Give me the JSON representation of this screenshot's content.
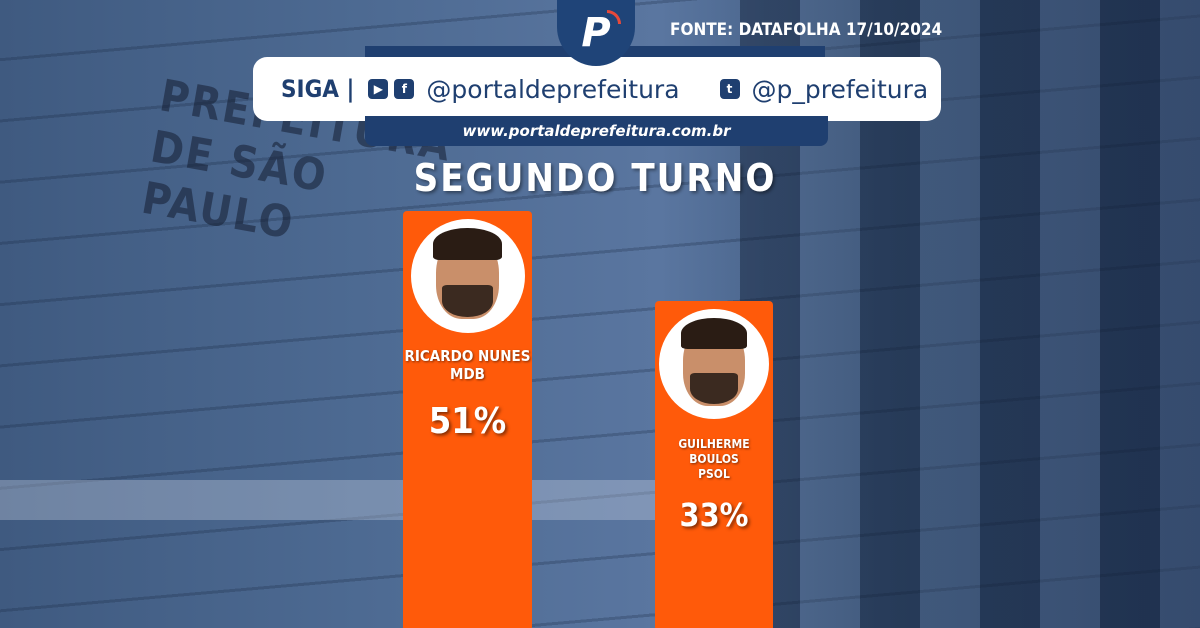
{
  "header": {
    "logo_letter": "P",
    "source": "FONTE: DATAFOLHA 17/10/2024",
    "follow_label": "SIGA |",
    "social_icons": [
      "youtube-icon",
      "facebook-icon",
      "twitter-icon"
    ],
    "handle_main": "@portaldeprefeitura",
    "handle_twitter": "@p_prefeitura",
    "website": "www.portaldeprefeitura.com.br"
  },
  "background_sign": "PREFEITURA DE SÃO PAULO",
  "colors": {
    "bar": "#ff5a0a",
    "brand": "#1f3f70"
  },
  "chart_data": {
    "type": "bar",
    "title": "SEGUNDO TURNO",
    "categories": [
      "RICARDO NUNES",
      "GUILHERME BOULOS"
    ],
    "parties": [
      "MDB",
      "PSOL"
    ],
    "values": [
      51,
      33
    ],
    "labels": [
      "51%",
      "33%"
    ]
  }
}
